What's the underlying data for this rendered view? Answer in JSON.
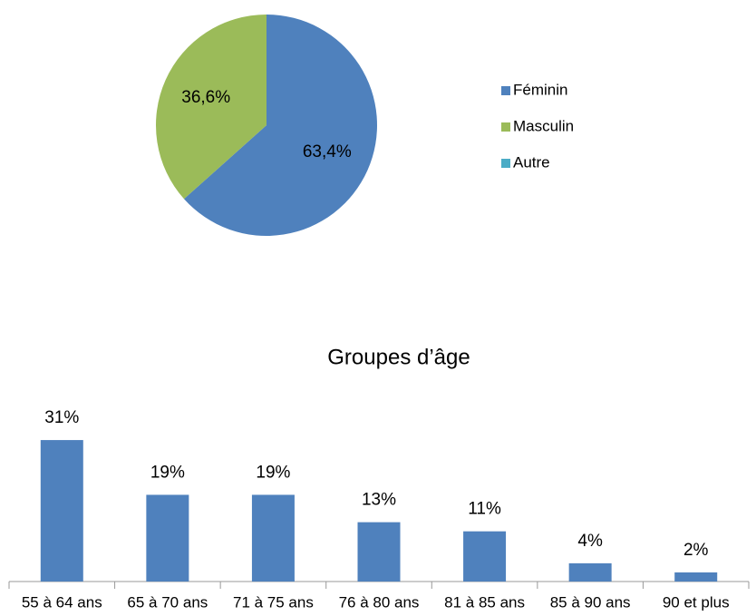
{
  "chart_data": [
    {
      "type": "pie",
      "categories": [
        "Féminin",
        "Masculin",
        "Autre"
      ],
      "values": [
        63.4,
        36.6,
        0
      ],
      "value_labels": [
        "63,4%",
        "36,6%",
        null
      ],
      "colors": [
        "#4f81bd",
        "#9bbb59",
        "#4bacc6"
      ],
      "legend": "right"
    },
    {
      "type": "bar",
      "title": "Groupes d’âge",
      "categories": [
        "55 à 64 ans",
        "65 à 70 ans",
        "71 à 75 ans",
        "76 à 80 ans",
        "81 à 85 ans",
        "85 à 90 ans",
        "90 et plus"
      ],
      "values": [
        31,
        19,
        19,
        13,
        11,
        4,
        2
      ],
      "value_labels": [
        "31%",
        "19%",
        "19%",
        "13%",
        "11%",
        "4%",
        "2%"
      ],
      "color": "#4f81bd"
    }
  ]
}
